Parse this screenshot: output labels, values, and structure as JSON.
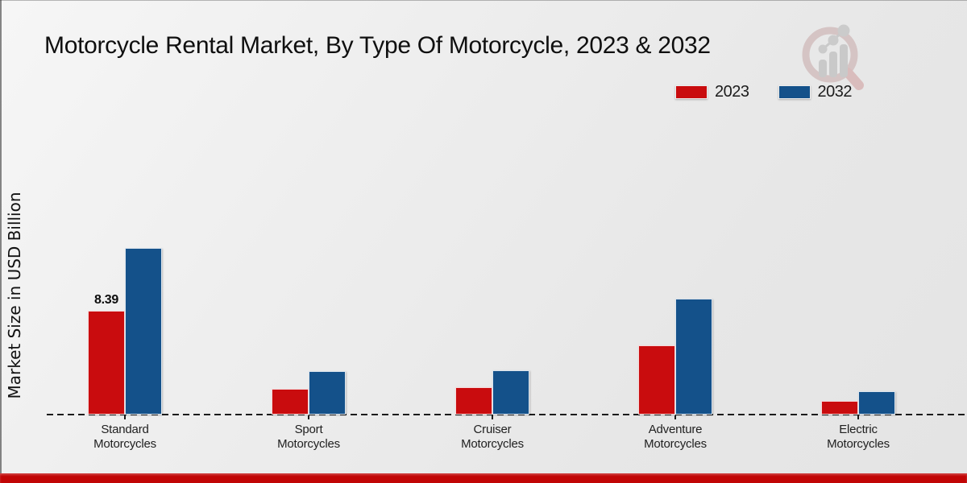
{
  "title": "Motorcycle Rental Market, By Type Of Motorcycle, 2023 & 2032",
  "ylabel": "Market Size in USD Billion",
  "legend": {
    "items": [
      {
        "label": "2023",
        "color": "#c90c0e"
      },
      {
        "label": "2032",
        "color": "#14518a"
      }
    ]
  },
  "footer": {
    "accent_bar_color": "#c10505"
  },
  "watermark_icon": "magnifier-bar-chart-logo",
  "chart_data": {
    "type": "bar",
    "title": "Motorcycle Rental Market, By Type Of Motorcycle, 2023 & 2032",
    "xlabel": "",
    "ylabel": "Market Size in USD Billion",
    "categories": [
      "Standard Motorcycles",
      "Sport Motorcycles",
      "Cruiser Motorcycles",
      "Adventure Motorcycles",
      "Electric Motorcycles"
    ],
    "category_label_lines": [
      [
        "Standard",
        "Motorcycles"
      ],
      [
        "Sport",
        "Motorcycles"
      ],
      [
        "Cruiser",
        "Motorcycles"
      ],
      [
        "Adventure",
        "Motorcycles"
      ],
      [
        "Electric",
        "Motorcycles"
      ]
    ],
    "series": [
      {
        "name": "2023",
        "color": "#c90c0e",
        "values": [
          8.39,
          2.1,
          2.2,
          5.6,
          1.1
        ]
      },
      {
        "name": "2032",
        "color": "#14518a",
        "values": [
          13.4,
          3.5,
          3.55,
          9.3,
          1.9
        ]
      }
    ],
    "point_labels": [
      {
        "series": 0,
        "category": 0,
        "text": "8.39"
      }
    ],
    "ylim": [
      0,
      14.5
    ],
    "grid": false,
    "legend_position": "top-right",
    "axis_style": "dashed-baseline-only"
  }
}
